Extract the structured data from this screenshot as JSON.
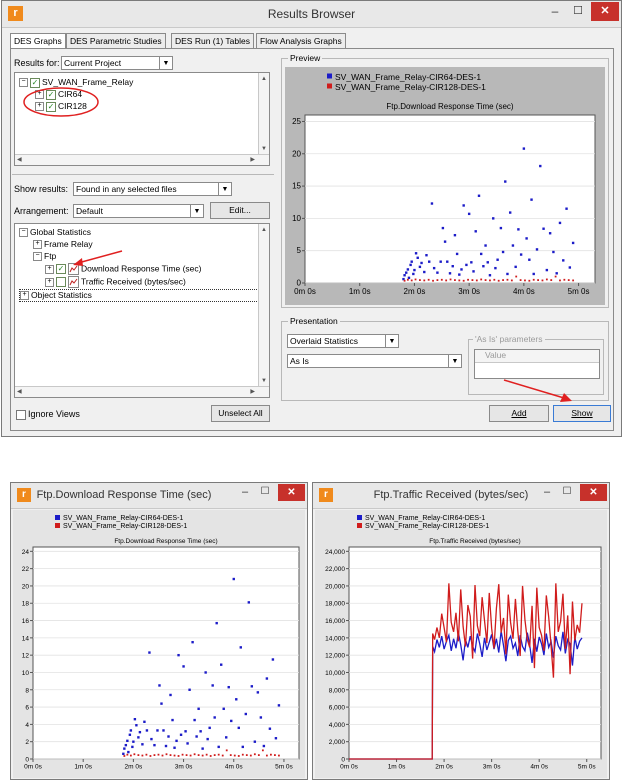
{
  "top_window": {
    "title": "Results Browser",
    "icon": "opnet-logo-icon",
    "controls": {
      "minimize": "–",
      "maximize": "☐",
      "close": "✕"
    },
    "tabs": [
      "DES Graphs",
      "DES Parametric Studies",
      "DES Run (1) Tables",
      "Flow Analysis Graphs"
    ],
    "results_for_label": "Results for:",
    "results_for_value": "Current Project",
    "project_tree": {
      "root": "SV_WAN_Frame_Relay",
      "children": [
        "CIR64",
        "CIR128"
      ]
    },
    "show_results_label": "Show results:",
    "show_results_value": "Found in any selected files",
    "arrangement_label": "Arrangement:",
    "arrangement_value": "Default",
    "edit_button": "Edit...",
    "stats_tree": {
      "global": "Global Statistics",
      "frame_relay": "Frame Relay",
      "ftp": "Ftp",
      "download": "Download Response Time (sec)",
      "traffic": "Traffic Received (bytes/sec)",
      "object": "Object Statistics"
    },
    "ignore_views": "Ignore Views",
    "unselect_all": "Unselect All",
    "preview_label": "Preview",
    "presentation_label": "Presentation",
    "presentation_value": "Overlaid Statistics",
    "as_is_value": "As Is",
    "as_is_params_label": "'As Is' parameters",
    "value_header": "Value",
    "add_button": "Add",
    "show_button": "Show",
    "annotation_color": "#e02020"
  },
  "bottom_left_window": {
    "title": "Ftp.Download Response Time (sec)",
    "controls": {
      "minimize": "–",
      "maximize": "☐",
      "close": "✕"
    }
  },
  "bottom_right_window": {
    "title": "Ftp.Traffic Received (bytes/sec)",
    "controls": {
      "minimize": "–",
      "maximize": "☐",
      "close": "✕"
    }
  },
  "chart_data": [
    {
      "id": "preview",
      "type": "scatter",
      "title": "Ftp.Download Response Time (sec)",
      "xlim": [
        0,
        5.3
      ],
      "ylim": [
        0,
        26
      ],
      "x_ticks": [
        "0m 0s",
        "1m 0s",
        "2m 0s",
        "3m 0s",
        "4m 0s",
        "5m 0s"
      ],
      "x_tick_values": [
        0,
        1,
        2,
        3,
        4,
        5
      ],
      "y_ticks": [
        0,
        5,
        10,
        15,
        20,
        25
      ],
      "series": [
        {
          "name": "SV_WAN_Frame_Relay-CIR64-DES-1",
          "color": "#1c1cc8",
          "x": [
            1.8,
            1.82,
            1.85,
            1.88,
            1.9,
            1.93,
            1.95,
            1.98,
            2.0,
            2.03,
            2.06,
            2.1,
            2.13,
            2.18,
            2.22,
            2.27,
            2.32,
            2.36,
            2.42,
            2.48,
            2.52,
            2.56,
            2.6,
            2.65,
            2.7,
            2.74,
            2.78,
            2.82,
            2.86,
            2.9,
            2.95,
            3.0,
            3.04,
            3.08,
            3.12,
            3.18,
            3.22,
            3.26,
            3.3,
            3.34,
            3.38,
            3.44,
            3.48,
            3.52,
            3.58,
            3.62,
            3.66,
            3.7,
            3.75,
            3.8,
            3.85,
            3.9,
            3.95,
            4.0,
            4.05,
            4.1,
            4.14,
            4.18,
            4.24,
            4.3,
            4.36,
            4.42,
            4.48,
            4.54,
            4.6,
            4.66,
            4.72,
            4.78,
            4.84,
            4.9
          ],
          "y": [
            0.6,
            1.2,
            1.6,
            2.1,
            0.8,
            2.8,
            3.3,
            1.4,
            2.0,
            4.6,
            3.9,
            2.5,
            3.1,
            1.7,
            4.3,
            3.3,
            12.3,
            2.3,
            1.6,
            3.3,
            8.5,
            6.4,
            3.3,
            1.5,
            2.6,
            7.4,
            4.5,
            1.3,
            2.1,
            12.0,
            2.8,
            10.7,
            3.2,
            1.8,
            8.0,
            13.5,
            4.5,
            2.6,
            5.8,
            3.2,
            1.2,
            10.0,
            2.3,
            3.6,
            8.5,
            4.8,
            15.7,
            1.4,
            10.9,
            5.8,
            2.5,
            8.3,
            4.4,
            20.8,
            6.9,
            3.6,
            12.9,
            1.4,
            5.2,
            18.1,
            8.4,
            2.0,
            7.7,
            4.8,
            1.5,
            9.3,
            3.5,
            11.5,
            2.4,
            6.2
          ]
        },
        {
          "name": "SV_WAN_Frame_Relay-CIR128-DES-1",
          "color": "#d01c1c",
          "x": [
            1.82,
            1.88,
            1.95,
            2.02,
            2.1,
            2.18,
            2.26,
            2.34,
            2.42,
            2.5,
            2.58,
            2.66,
            2.74,
            2.82,
            2.9,
            2.98,
            3.06,
            3.14,
            3.22,
            3.3,
            3.38,
            3.46,
            3.54,
            3.62,
            3.7,
            3.78,
            3.86,
            3.94,
            4.02,
            4.1,
            4.18,
            4.26,
            4.34,
            4.42,
            4.5,
            4.58,
            4.66,
            4.74,
            4.82,
            4.9
          ],
          "y": [
            0.35,
            0.5,
            0.4,
            0.55,
            0.45,
            0.4,
            0.5,
            0.35,
            0.45,
            0.5,
            0.4,
            0.55,
            0.45,
            0.4,
            0.35,
            0.5,
            0.45,
            0.4,
            0.55,
            0.45,
            0.4,
            0.5,
            0.35,
            0.45,
            0.5,
            0.4,
            1.0,
            0.45,
            0.4,
            0.35,
            0.5,
            0.45,
            0.4,
            0.55,
            0.45,
            1.0,
            0.4,
            0.5,
            0.45,
            0.4
          ]
        }
      ]
    },
    {
      "id": "download",
      "type": "scatter",
      "title": "Ftp.Download Response Time (sec)",
      "xlim": [
        0,
        5.3
      ],
      "ylim": [
        0,
        24.5
      ],
      "x_ticks": [
        "0m 0s",
        "1m 0s",
        "2m 0s",
        "3m 0s",
        "4m 0s",
        "5m 0s"
      ],
      "x_tick_values": [
        0,
        1,
        2,
        3,
        4,
        5
      ],
      "y_ticks": [
        0,
        2,
        4,
        6,
        8,
        10,
        12,
        14,
        16,
        18,
        20,
        22,
        24
      ],
      "series_ref": "preview"
    },
    {
      "id": "traffic",
      "type": "line",
      "title": "Ftp.Traffic Received (bytes/sec)",
      "xlim": [
        0,
        5.3
      ],
      "ylim": [
        0,
        24500
      ],
      "x_ticks": [
        "0m 0s",
        "1m 0s",
        "2m 0s",
        "3m 0s",
        "4m 0s",
        "5m 0s"
      ],
      "x_tick_values": [
        0,
        1,
        2,
        3,
        4,
        5
      ],
      "y_ticks": [
        "0",
        "2,000",
        "4,000",
        "6,000",
        "8,000",
        "10,000",
        "12,000",
        "14,000",
        "16,000",
        "18,000",
        "20,000",
        "22,000",
        "24,000"
      ],
      "y_tick_values": [
        0,
        2000,
        4000,
        6000,
        8000,
        10000,
        12000,
        14000,
        16000,
        18000,
        20000,
        22000,
        24000
      ],
      "series": [
        {
          "name": "SV_WAN_Frame_Relay-CIR64-DES-1",
          "color": "#1c1cc8",
          "x": [
            0,
            1.75,
            1.76,
            1.8,
            1.85,
            1.9,
            1.95,
            2.0,
            2.05,
            2.1,
            2.15,
            2.2,
            2.25,
            2.3,
            2.35,
            2.4,
            2.45,
            2.5,
            2.55,
            2.6,
            2.65,
            2.7,
            2.75,
            2.8,
            2.85,
            2.9,
            2.95,
            3.0,
            3.05,
            3.1,
            3.15,
            3.2,
            3.25,
            3.3,
            3.35,
            3.4,
            3.45,
            3.5,
            3.55,
            3.6,
            3.65,
            3.7,
            3.75,
            3.8,
            3.85,
            3.9,
            3.95,
            4.0,
            4.05,
            4.1,
            4.15,
            4.2,
            4.25,
            4.3,
            4.35,
            4.4,
            4.45,
            4.5,
            4.55,
            4.6,
            4.65,
            4.7,
            4.75,
            4.8,
            4.85,
            4.9
          ],
          "y": [
            0,
            0,
            13000,
            12400,
            13800,
            12900,
            14200,
            12700,
            13600,
            14300,
            12500,
            13900,
            12800,
            14600,
            13200,
            11400,
            13800,
            12900,
            14200,
            13000,
            12400,
            14500,
            13300,
            11800,
            14000,
            12600,
            13500,
            14400,
            12700,
            13900,
            12300,
            14800,
            13100,
            11300,
            13700,
            14200,
            12800,
            13400,
            11900,
            14300,
            13000,
            12500,
            14600,
            13200,
            11100,
            13900,
            12400,
            14100,
            13300,
            12000,
            14500,
            12900,
            13600,
            11700,
            14200,
            13100,
            12600,
            14700,
            12200,
            13800,
            13300,
            10800,
            14100,
            12700,
            13600,
            14000
          ]
        },
        {
          "name": "SV_WAN_Frame_Relay-CIR128-DES-1",
          "color": "#d01c1c",
          "x": [
            0,
            1.75,
            1.76,
            1.8,
            1.85,
            1.9,
            1.95,
            2.0,
            2.05,
            2.1,
            2.15,
            2.2,
            2.25,
            2.3,
            2.35,
            2.4,
            2.45,
            2.5,
            2.55,
            2.6,
            2.65,
            2.7,
            2.75,
            2.8,
            2.85,
            2.9,
            2.95,
            3.0,
            3.05,
            3.1,
            3.15,
            3.2,
            3.25,
            3.3,
            3.35,
            3.4,
            3.45,
            3.5,
            3.55,
            3.6,
            3.65,
            3.7,
            3.75,
            3.8,
            3.85,
            3.9,
            3.95,
            4.0,
            4.05,
            4.1,
            4.15,
            4.2,
            4.25,
            4.3,
            4.35,
            4.4,
            4.45,
            4.5,
            4.55,
            4.6,
            4.65,
            4.7,
            4.75,
            4.8,
            4.85,
            4.9
          ],
          "y": [
            0,
            0,
            14500,
            13800,
            15200,
            14000,
            16800,
            15200,
            13500,
            20300,
            15800,
            14700,
            16900,
            13600,
            19600,
            15300,
            13000,
            17800,
            16500,
            11600,
            20100,
            15400,
            14200,
            18700,
            16000,
            13400,
            19200,
            15100,
            12800,
            17400,
            20200,
            14600,
            16300,
            12100,
            19000,
            15700,
            13900,
            18500,
            14800,
            11900,
            20000,
            16100,
            13800,
            12900,
            17700,
            10500,
            19800,
            15200,
            14300,
            12500,
            18900,
            16400,
            13100,
            9400,
            20300,
            14700,
            15900,
            19100,
            12700,
            16600,
            9800,
            18200,
            13700,
            15500,
            14600,
            18000
          ]
        }
      ]
    }
  ]
}
